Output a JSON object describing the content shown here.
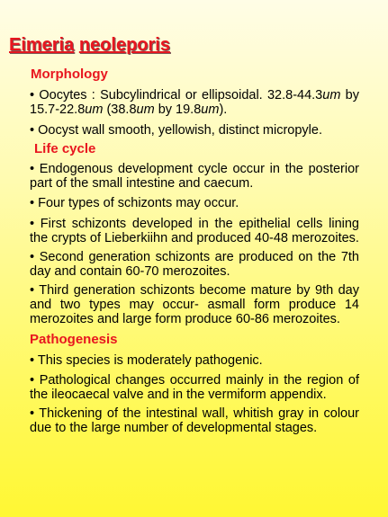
{
  "title": {
    "part1": "Eimeria",
    "part2": "neoleporis"
  },
  "sections": {
    "morphology": {
      "heading": "Morphology",
      "p1": {
        "t1": "• Oocytes : Subcylindrical or ellipsoidal. 32.8-44.3",
        "u1": "um",
        "t2": " by 15.7-22.8",
        "u2": "um",
        "t3": " (38.8",
        "u3": "um",
        "t4": " by 19.8",
        "u4": "um",
        "t5": ")."
      },
      "p2": "• Oocyst wall smooth, yellowish, distinct micropyle."
    },
    "lifecycle": {
      "heading": "Life cycle",
      "p1": "• Endogenous development cycle occur in the posterior part of the small intestine and caecum.",
      "p2": "• Four types of schizonts may occur.",
      "p3": "• First schizonts developed in the epithelial cells lining the crypts of Lieberkiihn and produced 40-48 merozoites.",
      "p4": "• Second generation schizonts are produced on the 7th day and contain 60-70 merozoites.",
      "p5": "• Third generation schizonts become mature by 9th day and two types may occur- asmall form produce 14 merozoites and large form produce 60-86 merozoites."
    },
    "pathogenesis": {
      "heading": "Pathogenesis",
      "p1": "• This species is moderately pathogenic.",
      "p2": "• Pathological changes occurred mainly in the region of the ileocaecal valve and in the vermiform appendix.",
      "p3": "• Thickening of the intestinal wall, whitish gray in colour due to the large number of developmental stages."
    }
  },
  "colors": {
    "heading": "#e8161f",
    "text": "#000000",
    "background_top": "#fffde6",
    "background_bottom": "#fff733"
  }
}
